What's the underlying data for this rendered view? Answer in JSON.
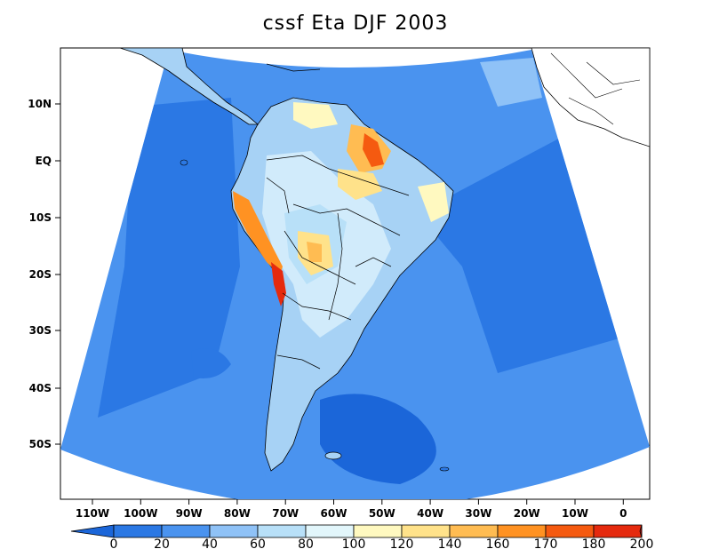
{
  "title": "cssf Eta DJF 2003",
  "y_axis_labels": [
    "10N",
    "EQ",
    "10S",
    "20S",
    "30S",
    "40S",
    "50S"
  ],
  "x_axis_labels": [
    "110W",
    "100W",
    "90W",
    "80W",
    "70W",
    "60W",
    "50W",
    "40W",
    "30W",
    "20W",
    "10W",
    "0"
  ],
  "colorbar": {
    "labels": [
      "0",
      "20",
      "40",
      "60",
      "80",
      "100",
      "120",
      "140",
      "160",
      "170",
      "180",
      "200"
    ],
    "colors": [
      "#1b66d9",
      "#2b78e4",
      "#4a93ef",
      "#8fc2f7",
      "#b8e0f8",
      "#e2f6fb",
      "#fff9c0",
      "#ffe28a",
      "#ffbc52",
      "#ff9222",
      "#f55a10",
      "#e52a0e",
      "#c00f0a"
    ]
  },
  "palette": {
    "ocean_deep": "#2b78e4",
    "ocean_mid": "#4a93ef",
    "land_base": "#a7d2f5",
    "land_light": "#d8f0fb",
    "coast": "#000000"
  }
}
